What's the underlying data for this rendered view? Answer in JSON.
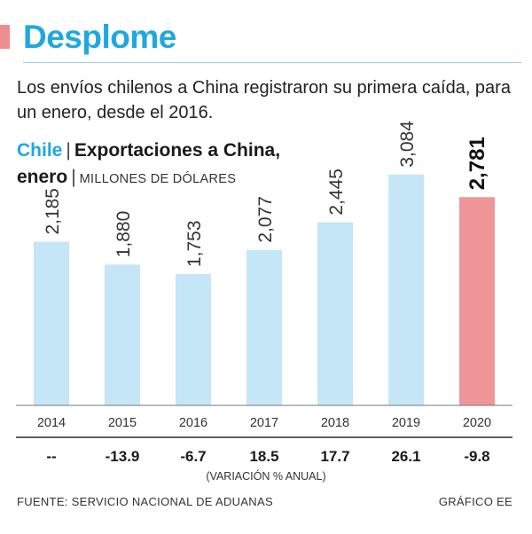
{
  "header": {
    "title": "Desplome",
    "subtitle": "Los envíos chilenos a China registraron su primera caída, para un enero, desde el 2016."
  },
  "chart_heading": {
    "country": "Chile",
    "separator": "|",
    "line1": "Exportaciones a China,",
    "line2": "enero",
    "units": "MILLONES DE DÓLARES"
  },
  "chart_data": {
    "type": "bar",
    "categories": [
      "2014",
      "2015",
      "2016",
      "2017",
      "2018",
      "2019",
      "2020"
    ],
    "values": [
      2185,
      1880,
      1753,
      2077,
      2445,
      3084,
      2781
    ],
    "value_labels": [
      "2,185",
      "1,880",
      "1,753",
      "2,077",
      "2,445",
      "3,084",
      "2,781"
    ],
    "variation_labels": [
      "--",
      "-13.9",
      "-6.7",
      "18.5",
      "17.7",
      "26.1",
      "-9.8"
    ],
    "variation_caption": "(VARIACIÓN % ANUAL)",
    "highlight_index": 6,
    "ylim": [
      0,
      3400
    ],
    "grid": false,
    "colors": {
      "bar": "#c5e6f6",
      "highlight": "#ef9597",
      "axis": "#777777"
    }
  },
  "footer": {
    "source": "FUENTE: SERVICIO NACIONAL DE ADUANAS",
    "credit": "GRÁFICO EE"
  }
}
